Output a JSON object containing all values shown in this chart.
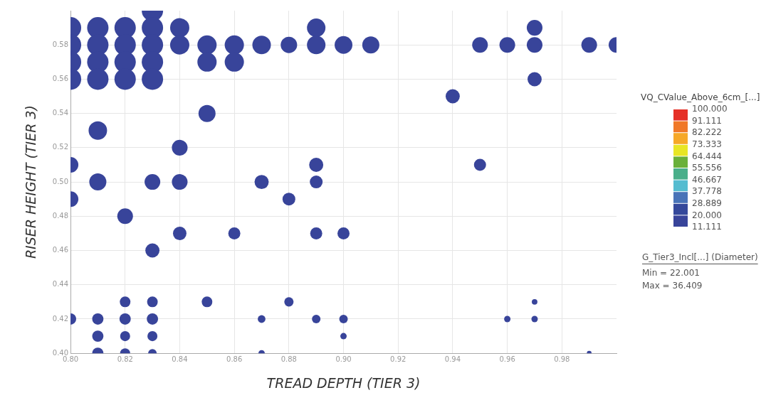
{
  "chart_data": {
    "type": "bubble",
    "xlabel": "TREAD DEPTH (TIER 3)",
    "ylabel": "RISER HEIGHT (TIER 3)",
    "clabel": "VQ_CValue_Above_6cm_[...]",
    "x": [
      0.8,
      0.8,
      0.8,
      0.8,
      0.8,
      0.8,
      0.8,
      0.81,
      0.81,
      0.81,
      0.81,
      0.81,
      0.81,
      0.81,
      0.81,
      0.81,
      0.82,
      0.82,
      0.82,
      0.82,
      0.82,
      0.82,
      0.82,
      0.82,
      0.82,
      0.83,
      0.83,
      0.83,
      0.83,
      0.83,
      0.83,
      0.83,
      0.83,
      0.83,
      0.83,
      0.83,
      0.84,
      0.84,
      0.84,
      0.84,
      0.84,
      0.85,
      0.85,
      0.85,
      0.85,
      0.86,
      0.86,
      0.86,
      0.87,
      0.87,
      0.87,
      0.87,
      0.88,
      0.88,
      0.88,
      0.89,
      0.89,
      0.89,
      0.89,
      0.89,
      0.89,
      0.9,
      0.9,
      0.9,
      0.9,
      0.91,
      0.94,
      0.95,
      0.95,
      0.96,
      0.96,
      0.97,
      0.97,
      0.97,
      0.97,
      0.97,
      0.99,
      0.99,
      1.0
    ],
    "values": [
      0.59,
      0.58,
      0.57,
      0.56,
      0.51,
      0.49,
      0.42,
      0.59,
      0.58,
      0.57,
      0.56,
      0.53,
      0.5,
      0.42,
      0.41,
      0.4,
      0.59,
      0.58,
      0.57,
      0.56,
      0.48,
      0.43,
      0.42,
      0.41,
      0.4,
      0.6,
      0.59,
      0.58,
      0.57,
      0.56,
      0.5,
      0.46,
      0.43,
      0.42,
      0.41,
      0.4,
      0.59,
      0.58,
      0.52,
      0.5,
      0.47,
      0.58,
      0.57,
      0.54,
      0.43,
      0.58,
      0.57,
      0.47,
      0.58,
      0.5,
      0.42,
      0.4,
      0.58,
      0.49,
      0.43,
      0.59,
      0.58,
      0.51,
      0.5,
      0.47,
      0.42,
      0.58,
      0.47,
      0.42,
      0.41,
      0.58,
      0.55,
      0.58,
      0.51,
      0.58,
      0.42,
      0.59,
      0.58,
      0.56,
      0.43,
      0.42,
      0.58,
      0.4,
      0.58
    ],
    "sizes": [
      1,
      1,
      1,
      1,
      0.54,
      0.54,
      0.28,
      1,
      1,
      1,
      1,
      0.75,
      0.64,
      0.28,
      0.28,
      0.28,
      1,
      1,
      1,
      1,
      0.54,
      0.25,
      0.28,
      0.22,
      0.22,
      1,
      1,
      1,
      1,
      1,
      0.54,
      0.44,
      0.25,
      0.28,
      0.22,
      0.16,
      0.81,
      0.81,
      0.54,
      0.54,
      0.4,
      0.81,
      0.81,
      0.64,
      0.25,
      0.81,
      0.81,
      0.32,
      0.75,
      0.44,
      0.13,
      0.09,
      0.59,
      0.36,
      0.19,
      0.75,
      0.75,
      0.44,
      0.36,
      0.32,
      0.16,
      0.69,
      0.32,
      0.16,
      0.09,
      0.64,
      0.44,
      0.54,
      0.32,
      0.54,
      0.09,
      0.54,
      0.54,
      0.44,
      0.07,
      0.09,
      0.54,
      0.05,
      0.54
    ],
    "color": "#38449a",
    "xlim": [
      0.8,
      1.0
    ],
    "ylim": [
      0.4,
      0.6
    ],
    "xticks": [
      {
        "value": 0.8,
        "label": "0.80"
      },
      {
        "value": 0.82,
        "label": "0.82"
      },
      {
        "value": 0.84,
        "label": "0.84"
      },
      {
        "value": 0.86,
        "label": "0.86"
      },
      {
        "value": 0.88,
        "label": "0.88"
      },
      {
        "value": 0.9,
        "label": "0.90"
      },
      {
        "value": 0.92,
        "label": "0.92"
      },
      {
        "value": 0.94,
        "label": "0.94"
      },
      {
        "value": 0.96,
        "label": "0.96"
      },
      {
        "value": 0.98,
        "label": "0.98"
      }
    ],
    "yticks": [
      {
        "value": 0.4,
        "label": "0.40"
      },
      {
        "value": 0.42,
        "label": "0.42"
      },
      {
        "value": 0.44,
        "label": "0.44"
      },
      {
        "value": 0.46,
        "label": "0.46"
      },
      {
        "value": 0.48,
        "label": "0.48"
      },
      {
        "value": 0.5,
        "label": "0.50"
      },
      {
        "value": 0.52,
        "label": "0.52"
      },
      {
        "value": 0.54,
        "label": "0.54"
      },
      {
        "value": 0.56,
        "label": "0.56"
      },
      {
        "value": 0.58,
        "label": "0.58"
      }
    ],
    "clim": [
      11.111,
      100
    ],
    "cticks": [
      {
        "value": 11.111,
        "label": "11.111"
      },
      {
        "value": 20,
        "label": "20.000"
      },
      {
        "value": 28.889,
        "label": "28.889"
      },
      {
        "value": 37.778,
        "label": "37.778"
      },
      {
        "value": 46.667,
        "label": "46.667"
      },
      {
        "value": 55.556,
        "label": "55.556"
      },
      {
        "value": 64.444,
        "label": "64.444"
      },
      {
        "value": 73.333,
        "label": "73.333"
      },
      {
        "value": 82.222,
        "label": "82.222"
      },
      {
        "value": 91.111,
        "label": "91.111"
      },
      {
        "value": 100,
        "label": "100.000"
      }
    ],
    "annotations": [
      "G_Tier3_Incl[...] (Diameter)",
      "Min = 22.001",
      "Max = 36.409"
    ],
    "grid": true,
    "legend": false
  }
}
